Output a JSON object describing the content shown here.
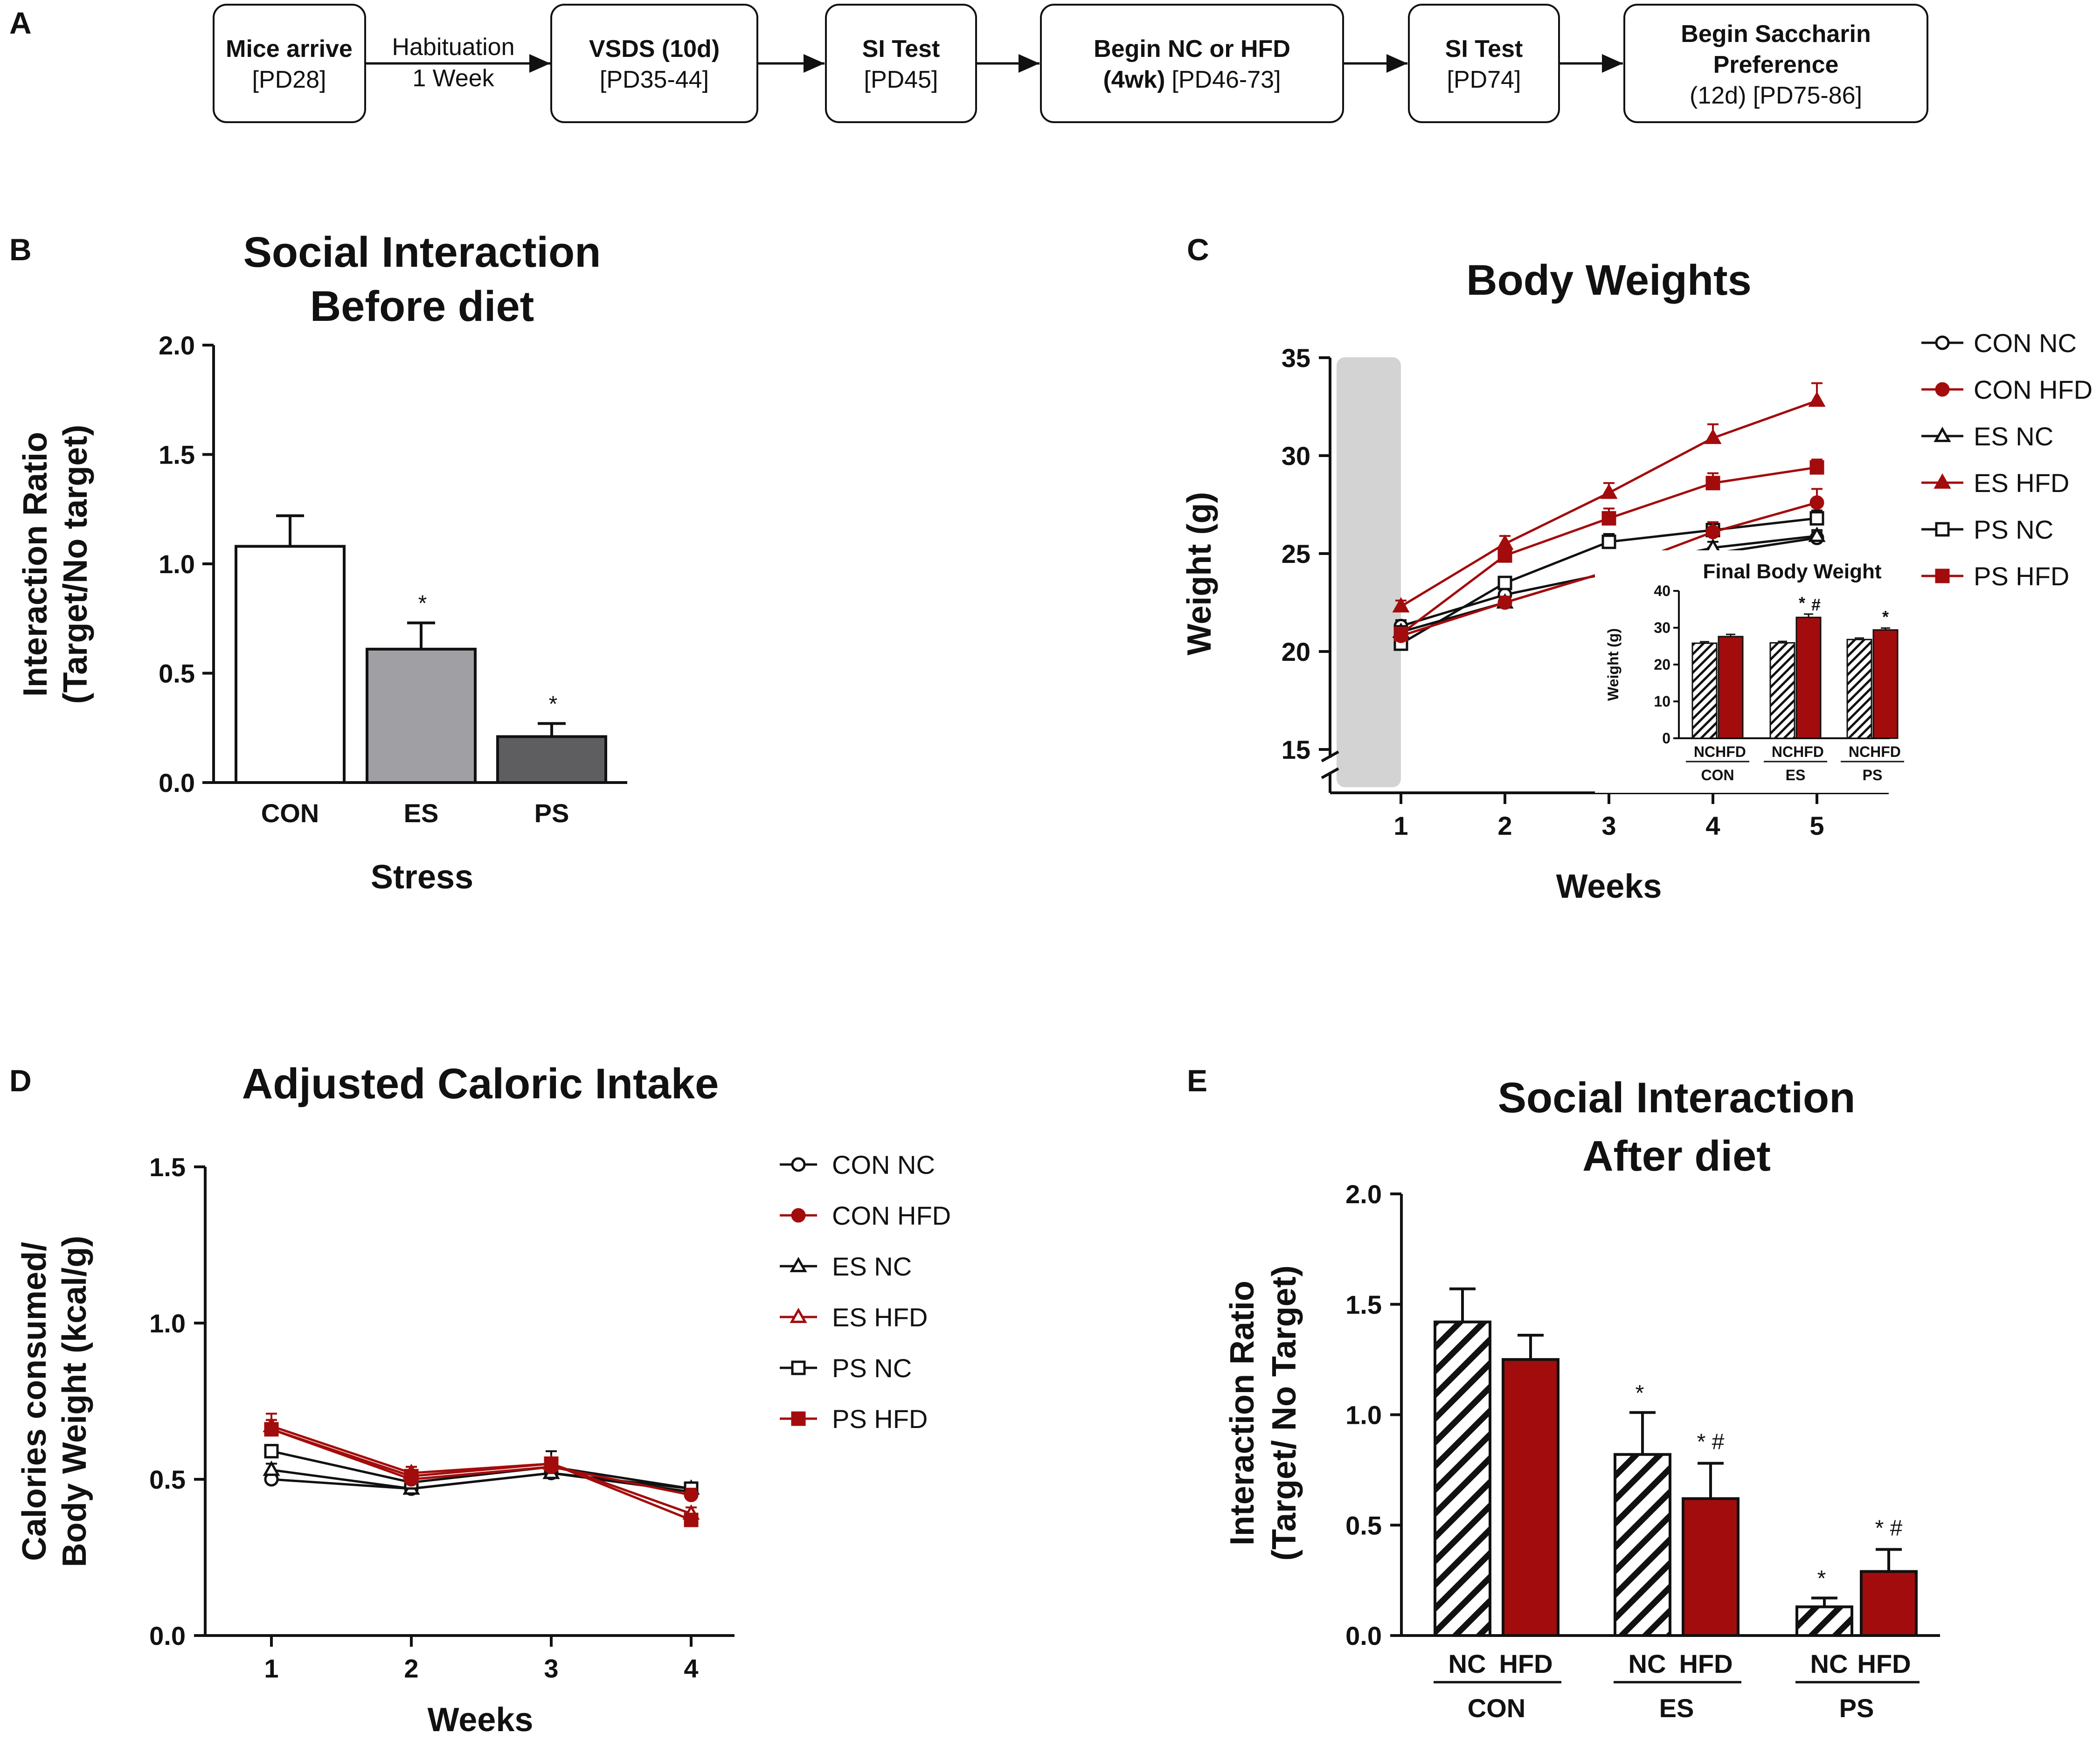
{
  "colors": {
    "hfd": "#a30c0c",
    "nc": "#111111",
    "con_bar": "#ffffff",
    "es_bar": "#a0a0a4",
    "ps_bar": "#5e5e60",
    "shade": "#d3d3d3"
  },
  "panel_a": {
    "label": "A",
    "boxes": [
      {
        "bold": "Mice arrive",
        "normal": "[PD28]"
      },
      {
        "bold": "VSDS (10d)",
        "normal": "[PD35-44]"
      },
      {
        "bold": "SI Test",
        "normal": "[PD45]"
      },
      {
        "bold": "Begin NC or HFD",
        "bold2": "(4wk)",
        "normal": "[PD46-73]"
      },
      {
        "bold": "SI Test",
        "normal": "[PD74]"
      },
      {
        "bold": "Begin Saccharin",
        "bold2": "Preference",
        "normal": "(12d) [PD75-86]"
      }
    ],
    "arrow_label_1": "Habituation",
    "arrow_label_2": "1 Week"
  },
  "chart_data": [
    {
      "panel": "B",
      "type": "bar",
      "title": "Social Interaction",
      "title2": "Before diet",
      "xlabel": "Stress",
      "ylabel": "Interaction Ratio",
      "ylabel2": "(Target/No target)",
      "categories": [
        "CON",
        "ES",
        "PS"
      ],
      "values": [
        1.08,
        0.61,
        0.21
      ],
      "errors": [
        0.14,
        0.12,
        0.06
      ],
      "significance": [
        "",
        "*",
        "*"
      ],
      "ylim": [
        0,
        2.0
      ],
      "yticks": [
        "0.0",
        "0.5",
        "1.0",
        "1.5",
        "2.0"
      ]
    },
    {
      "panel": "C",
      "type": "line",
      "title": "Body Weights",
      "xlabel": "Weeks",
      "ylabel": "Weight (g)",
      "x": [
        1,
        2,
        3,
        4,
        5
      ],
      "xticks": [
        "1",
        "2",
        "3",
        "4",
        "5"
      ],
      "ylim": [
        15,
        35
      ],
      "yticks": [
        "15",
        "20",
        "25",
        "30",
        "35"
      ],
      "series": [
        {
          "name": "CON NC",
          "marker": "circle-open",
          "color": "#111111",
          "values": [
            21.3,
            22.9,
            24.0,
            25.0,
            25.8
          ],
          "errors": [
            0.3,
            0.3,
            0.3,
            0.3,
            0.3
          ]
        },
        {
          "name": "CON HFD",
          "marker": "circle-filled",
          "color": "#a30c0c",
          "values": [
            20.8,
            22.5,
            24.1,
            26.1,
            27.6
          ],
          "errors": [
            0.3,
            0.3,
            0.4,
            0.5,
            0.7
          ]
        },
        {
          "name": "ES NC",
          "marker": "triangle-open",
          "color": "#111111",
          "values": [
            21.0,
            22.5,
            24.1,
            25.3,
            25.9
          ],
          "errors": [
            0.3,
            0.3,
            0.3,
            0.3,
            0.3
          ]
        },
        {
          "name": "ES HFD",
          "marker": "triangle-filled",
          "color": "#a30c0c",
          "values": [
            22.3,
            25.5,
            28.1,
            30.9,
            32.8
          ],
          "errors": [
            0.3,
            0.4,
            0.5,
            0.7,
            0.9
          ]
        },
        {
          "name": "PS NC",
          "marker": "square-open",
          "color": "#111111",
          "values": [
            20.4,
            23.5,
            25.6,
            26.2,
            26.8
          ],
          "errors": [
            0.3,
            0.3,
            0.4,
            0.4,
            0.4
          ]
        },
        {
          "name": "PS HFD",
          "marker": "square-filled",
          "color": "#a30c0c",
          "values": [
            20.9,
            24.9,
            26.8,
            28.6,
            29.4
          ],
          "errors": [
            0.3,
            0.4,
            0.5,
            0.5,
            0.4
          ]
        }
      ],
      "inset": {
        "title": "Final Body Weight",
        "ylabel": "Weight (g)",
        "ylim": [
          0,
          40
        ],
        "yticks": [
          "0",
          "10",
          "20",
          "30",
          "40"
        ],
        "groups": [
          "CON",
          "ES",
          "PS"
        ],
        "bar_labels": [
          "NC",
          "HFD"
        ],
        "nc_values": [
          25.8,
          25.9,
          26.8
        ],
        "hfd_values": [
          27.6,
          32.8,
          29.4
        ],
        "nc_errors": [
          0.4,
          0.4,
          0.4
        ],
        "hfd_errors": [
          0.6,
          0.9,
          0.5
        ],
        "hfd_significance": [
          "",
          "*",
          "*"
        ],
        "hash": [
          "",
          "#",
          ""
        ]
      }
    },
    {
      "panel": "D",
      "type": "line",
      "title": "Adjusted Caloric Intake",
      "xlabel": "Weeks",
      "ylabel": "Calories consumed/",
      "ylabel2": "Body Weight (kcal/g)",
      "x": [
        1,
        2,
        3,
        4
      ],
      "xticks": [
        "1",
        "2",
        "3",
        "4"
      ],
      "ylim": [
        0,
        1.5
      ],
      "yticks": [
        "0.0",
        "0.5",
        "1.0",
        "1.5"
      ],
      "series": [
        {
          "name": "CON NC",
          "marker": "circle-open",
          "color": "#111111",
          "values": [
            0.5,
            0.47,
            0.52,
            0.46
          ],
          "errors": [
            0.02,
            0.02,
            0.02,
            0.02
          ]
        },
        {
          "name": "CON HFD",
          "marker": "circle-filled",
          "color": "#a30c0c",
          "values": [
            0.66,
            0.5,
            0.54,
            0.45
          ],
          "errors": [
            0.03,
            0.02,
            0.03,
            0.02
          ]
        },
        {
          "name": "ES NC",
          "marker": "triangle-open",
          "color": "#111111",
          "values": [
            0.53,
            0.47,
            0.52,
            0.47
          ],
          "errors": [
            0.02,
            0.02,
            0.02,
            0.02
          ]
        },
        {
          "name": "ES HFD",
          "marker": "triangle-open",
          "color": "#a30c0c",
          "values": [
            0.67,
            0.52,
            0.55,
            0.39
          ],
          "errors": [
            0.04,
            0.02,
            0.02,
            0.02
          ]
        },
        {
          "name": "PS NC",
          "marker": "square-open",
          "color": "#111111",
          "values": [
            0.59,
            0.49,
            0.54,
            0.47
          ],
          "errors": [
            0.02,
            0.02,
            0.05,
            0.02
          ]
        },
        {
          "name": "PS HFD",
          "marker": "square-filled",
          "color": "#a30c0c",
          "values": [
            0.66,
            0.51,
            0.55,
            0.37
          ],
          "errors": [
            0.03,
            0.03,
            0.02,
            0.02
          ]
        }
      ]
    },
    {
      "panel": "E",
      "type": "bar",
      "title": "Social Interaction",
      "title2": "After diet",
      "ylabel": "Interaction Ratio",
      "ylabel2": "(Target/ No Target)",
      "groups": [
        "CON",
        "ES",
        "PS"
      ],
      "bar_labels": [
        "NC",
        "HFD"
      ],
      "nc_values": [
        1.42,
        0.82,
        0.13
      ],
      "hfd_values": [
        1.25,
        0.62,
        0.29
      ],
      "nc_errors": [
        0.15,
        0.19,
        0.04
      ],
      "hfd_errors": [
        0.11,
        0.16,
        0.1
      ],
      "nc_significance": [
        "",
        "*",
        "*"
      ],
      "hfd_significance": [
        "",
        "* #",
        "* #"
      ],
      "ylim": [
        0,
        2.0
      ],
      "yticks": [
        "0.0",
        "0.5",
        "1.0",
        "1.5",
        "2.0"
      ]
    }
  ],
  "panel_labels": {
    "b": "B",
    "c": "C",
    "d": "D",
    "e": "E"
  }
}
